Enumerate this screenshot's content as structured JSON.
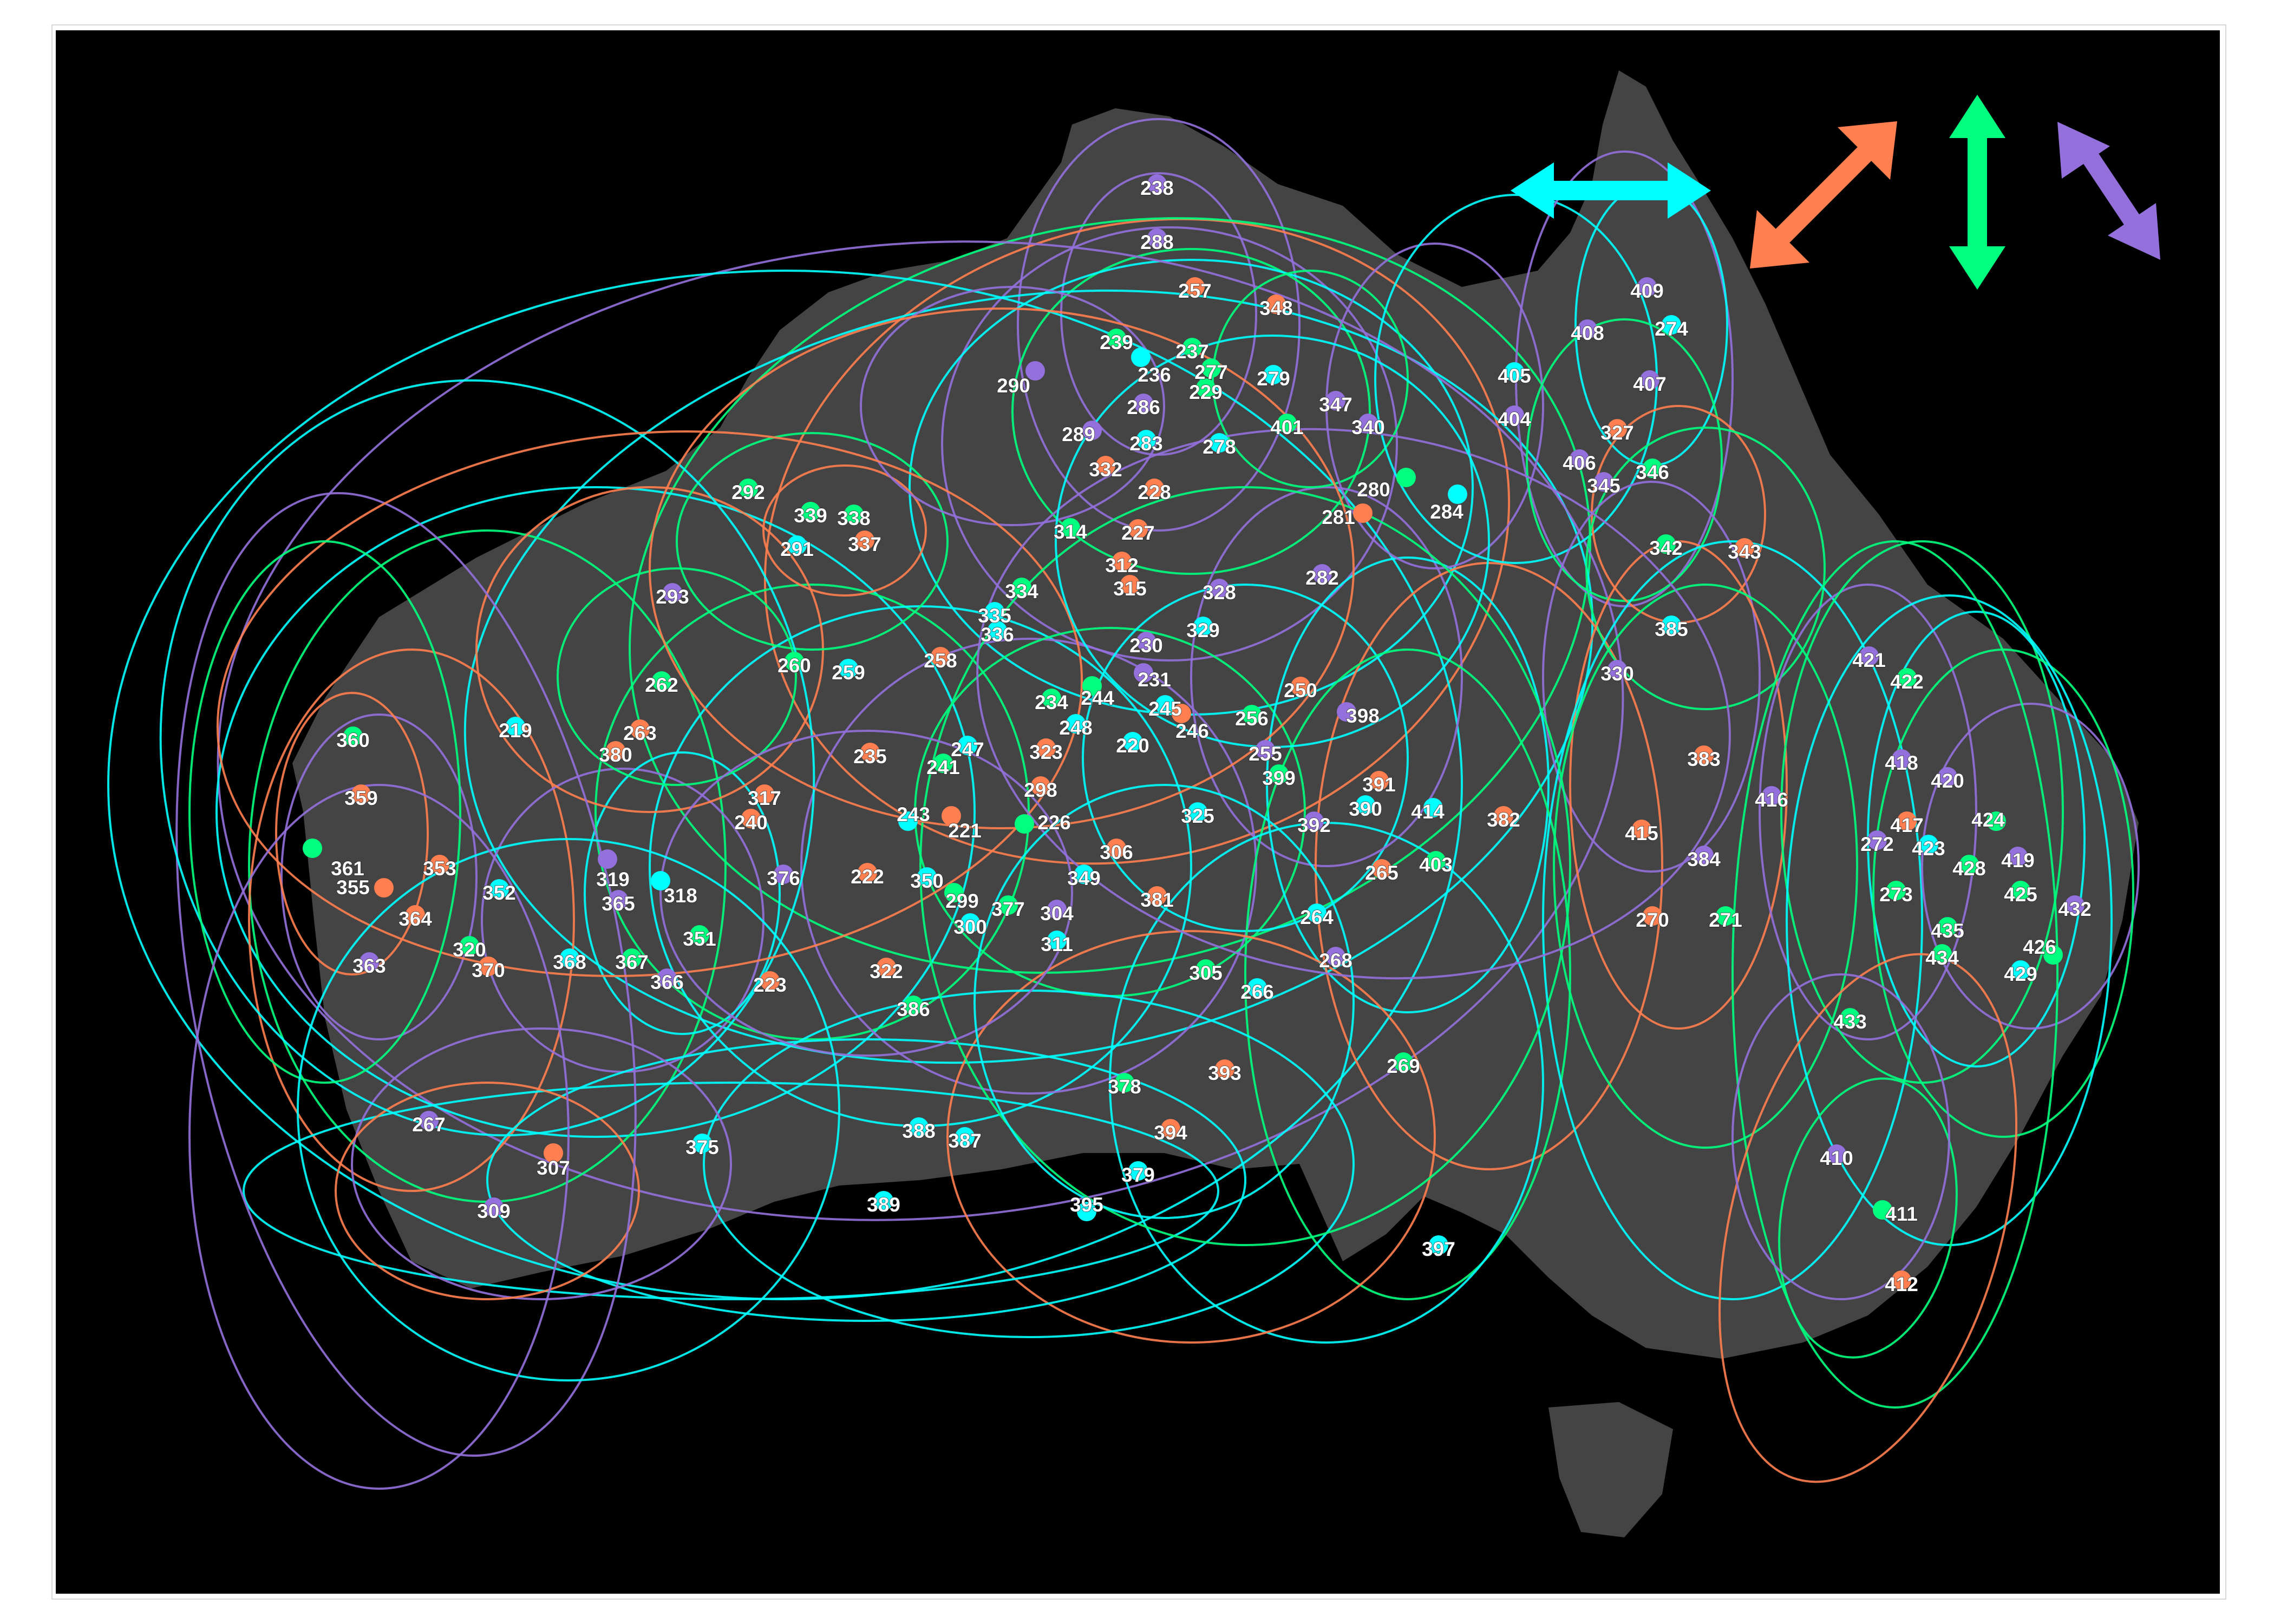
{
  "colors": {
    "background": "#000000",
    "land": "#444444",
    "cyan": "#00ffff",
    "orange": "#ff7f50",
    "green": "#00ff7f",
    "purple": "#9370db",
    "label": "#ffffff"
  },
  "legend": [
    {
      "icon": "horizontal-double-arrow-icon",
      "color": "#00ffff"
    },
    {
      "icon": "diagonal-up-right-double-arrow-icon",
      "color": "#ff7f50"
    },
    {
      "icon": "vertical-double-arrow-icon",
      "color": "#00ff7f"
    },
    {
      "icon": "diagonal-down-right-double-arrow-icon",
      "color": "#9370db"
    }
  ],
  "sites": [
    {
      "id": "238",
      "c": "purple"
    },
    {
      "id": "288",
      "c": "purple"
    },
    {
      "id": "257",
      "c": "orange"
    },
    {
      "id": "348",
      "c": "orange"
    },
    {
      "id": "239",
      "c": "green"
    },
    {
      "id": "237",
      "c": "green"
    },
    {
      "id": "236",
      "c": "cyan"
    },
    {
      "id": "277",
      "c": "green"
    },
    {
      "id": "279",
      "c": "cyan"
    },
    {
      "id": "229",
      "c": "green"
    },
    {
      "id": "290",
      "c": "purple"
    },
    {
      "id": "286",
      "c": "purple"
    },
    {
      "id": "347",
      "c": "purple"
    },
    {
      "id": "401",
      "c": "green"
    },
    {
      "id": "340",
      "c": "purple"
    },
    {
      "id": "289",
      "c": "purple"
    },
    {
      "id": "283",
      "c": "cyan"
    },
    {
      "id": "278",
      "c": "cyan"
    },
    {
      "id": "332",
      "c": "orange"
    },
    {
      "id": "228",
      "c": "orange"
    },
    {
      "id": "280",
      "c": "green"
    },
    {
      "id": "281",
      "c": "orange"
    },
    {
      "id": "284",
      "c": "cyan"
    },
    {
      "id": "292",
      "c": "green"
    },
    {
      "id": "339",
      "c": "green"
    },
    {
      "id": "338",
      "c": "green"
    },
    {
      "id": "314",
      "c": "green"
    },
    {
      "id": "227",
      "c": "orange"
    },
    {
      "id": "291",
      "c": "cyan"
    },
    {
      "id": "337",
      "c": "orange"
    },
    {
      "id": "312",
      "c": "orange"
    },
    {
      "id": "315",
      "c": "orange"
    },
    {
      "id": "282",
      "c": "purple"
    },
    {
      "id": "293",
      "c": "purple"
    },
    {
      "id": "334",
      "c": "green"
    },
    {
      "id": "328",
      "c": "purple"
    },
    {
      "id": "335",
      "c": "cyan"
    },
    {
      "id": "336",
      "c": "cyan"
    },
    {
      "id": "329",
      "c": "cyan"
    },
    {
      "id": "230",
      "c": "purple"
    },
    {
      "id": "262",
      "c": "green"
    },
    {
      "id": "260",
      "c": "green"
    },
    {
      "id": "259",
      "c": "cyan"
    },
    {
      "id": "258",
      "c": "orange"
    },
    {
      "id": "231",
      "c": "purple"
    },
    {
      "id": "250",
      "c": "orange"
    },
    {
      "id": "234",
      "c": "green"
    },
    {
      "id": "244",
      "c": "green"
    },
    {
      "id": "245",
      "c": "cyan"
    },
    {
      "id": "256",
      "c": "green"
    },
    {
      "id": "398",
      "c": "purple"
    },
    {
      "id": "219",
      "c": "cyan"
    },
    {
      "id": "263",
      "c": "orange"
    },
    {
      "id": "248",
      "c": "cyan"
    },
    {
      "id": "246",
      "c": "orange"
    },
    {
      "id": "360",
      "c": "green"
    },
    {
      "id": "380",
      "c": "orange"
    },
    {
      "id": "235",
      "c": "orange"
    },
    {
      "id": "247",
      "c": "cyan"
    },
    {
      "id": "323",
      "c": "orange"
    },
    {
      "id": "220",
      "c": "cyan"
    },
    {
      "id": "255",
      "c": "purple"
    },
    {
      "id": "241",
      "c": "green"
    },
    {
      "id": "399",
      "c": "green"
    },
    {
      "id": "391",
      "c": "orange"
    },
    {
      "id": "359",
      "c": "orange"
    },
    {
      "id": "317",
      "c": "orange"
    },
    {
      "id": "298",
      "c": "orange"
    },
    {
      "id": "390",
      "c": "cyan"
    },
    {
      "id": "414",
      "c": "cyan"
    },
    {
      "id": "240",
      "c": "orange"
    },
    {
      "id": "243",
      "c": "cyan"
    },
    {
      "id": "226",
      "c": "green"
    },
    {
      "id": "325",
      "c": "cyan"
    },
    {
      "id": "392",
      "c": "purple"
    },
    {
      "id": "382",
      "c": "orange"
    },
    {
      "id": "221",
      "c": "orange"
    },
    {
      "id": "306",
      "c": "orange"
    },
    {
      "id": "361",
      "c": "green"
    },
    {
      "id": "353",
      "c": "orange"
    },
    {
      "id": "376",
      "c": "purple"
    },
    {
      "id": "222",
      "c": "orange"
    },
    {
      "id": "350",
      "c": "cyan"
    },
    {
      "id": "349",
      "c": "cyan"
    },
    {
      "id": "265",
      "c": "orange"
    },
    {
      "id": "403",
      "c": "green"
    },
    {
      "id": "355",
      "c": "orange"
    },
    {
      "id": "319",
      "c": "purple"
    },
    {
      "id": "352",
      "c": "cyan"
    },
    {
      "id": "318",
      "c": "cyan"
    },
    {
      "id": "299",
      "c": "green"
    },
    {
      "id": "377",
      "c": "green"
    },
    {
      "id": "381",
      "c": "orange"
    },
    {
      "id": "365",
      "c": "purple"
    },
    {
      "id": "300",
      "c": "cyan"
    },
    {
      "id": "304",
      "c": "purple"
    },
    {
      "id": "364",
      "c": "orange"
    },
    {
      "id": "264",
      "c": "cyan"
    },
    {
      "id": "351",
      "c": "green"
    },
    {
      "id": "311",
      "c": "cyan"
    },
    {
      "id": "320",
      "c": "green"
    },
    {
      "id": "368",
      "c": "cyan"
    },
    {
      "id": "367",
      "c": "green"
    },
    {
      "id": "268",
      "c": "purple"
    },
    {
      "id": "363",
      "c": "purple"
    },
    {
      "id": "370",
      "c": "orange"
    },
    {
      "id": "322",
      "c": "orange"
    },
    {
      "id": "305",
      "c": "green"
    },
    {
      "id": "366",
      "c": "purple"
    },
    {
      "id": "223",
      "c": "orange"
    },
    {
      "id": "266",
      "c": "cyan"
    },
    {
      "id": "386",
      "c": "green"
    },
    {
      "id": "269",
      "c": "green"
    },
    {
      "id": "378",
      "c": "green"
    },
    {
      "id": "393",
      "c": "orange"
    },
    {
      "id": "267",
      "c": "purple"
    },
    {
      "id": "388",
      "c": "cyan"
    },
    {
      "id": "387",
      "c": "cyan"
    },
    {
      "id": "394",
      "c": "orange"
    },
    {
      "id": "375",
      "c": "cyan"
    },
    {
      "id": "307",
      "c": "orange"
    },
    {
      "id": "379",
      "c": "cyan"
    },
    {
      "id": "309",
      "c": "purple"
    },
    {
      "id": "389",
      "c": "cyan"
    },
    {
      "id": "395",
      "c": "cyan"
    },
    {
      "id": "397",
      "c": "cyan"
    },
    {
      "id": "409",
      "c": "purple"
    },
    {
      "id": "408",
      "c": "purple"
    },
    {
      "id": "274",
      "c": "cyan"
    },
    {
      "id": "405",
      "c": "cyan"
    },
    {
      "id": "407",
      "c": "purple"
    },
    {
      "id": "404",
      "c": "purple"
    },
    {
      "id": "327",
      "c": "orange"
    },
    {
      "id": "406",
      "c": "purple"
    },
    {
      "id": "345",
      "c": "purple"
    },
    {
      "id": "346",
      "c": "green"
    },
    {
      "id": "342",
      "c": "green"
    },
    {
      "id": "343",
      "c": "orange"
    },
    {
      "id": "385",
      "c": "cyan"
    },
    {
      "id": "330",
      "c": "purple"
    },
    {
      "id": "383",
      "c": "orange"
    },
    {
      "id": "416",
      "c": "purple"
    },
    {
      "id": "415",
      "c": "orange"
    },
    {
      "id": "384",
      "c": "purple"
    },
    {
      "id": "270",
      "c": "orange"
    },
    {
      "id": "271",
      "c": "green"
    },
    {
      "id": "421",
      "c": "purple"
    },
    {
      "id": "422",
      "c": "green"
    },
    {
      "id": "418",
      "c": "purple"
    },
    {
      "id": "420",
      "c": "purple"
    },
    {
      "id": "417",
      "c": "orange"
    },
    {
      "id": "424",
      "c": "green"
    },
    {
      "id": "272",
      "c": "purple"
    },
    {
      "id": "423",
      "c": "cyan"
    },
    {
      "id": "428",
      "c": "green"
    },
    {
      "id": "419",
      "c": "purple"
    },
    {
      "id": "273",
      "c": "green"
    },
    {
      "id": "425",
      "c": "green"
    },
    {
      "id": "432",
      "c": "purple"
    },
    {
      "id": "435",
      "c": "green"
    },
    {
      "id": "426",
      "c": "green"
    },
    {
      "id": "434",
      "c": "green"
    },
    {
      "id": "429",
      "c": "cyan"
    },
    {
      "id": "433",
      "c": "green"
    },
    {
      "id": "410",
      "c": "purple"
    },
    {
      "id": "411",
      "c": "green"
    },
    {
      "id": "412",
      "c": "orange"
    }
  ]
}
